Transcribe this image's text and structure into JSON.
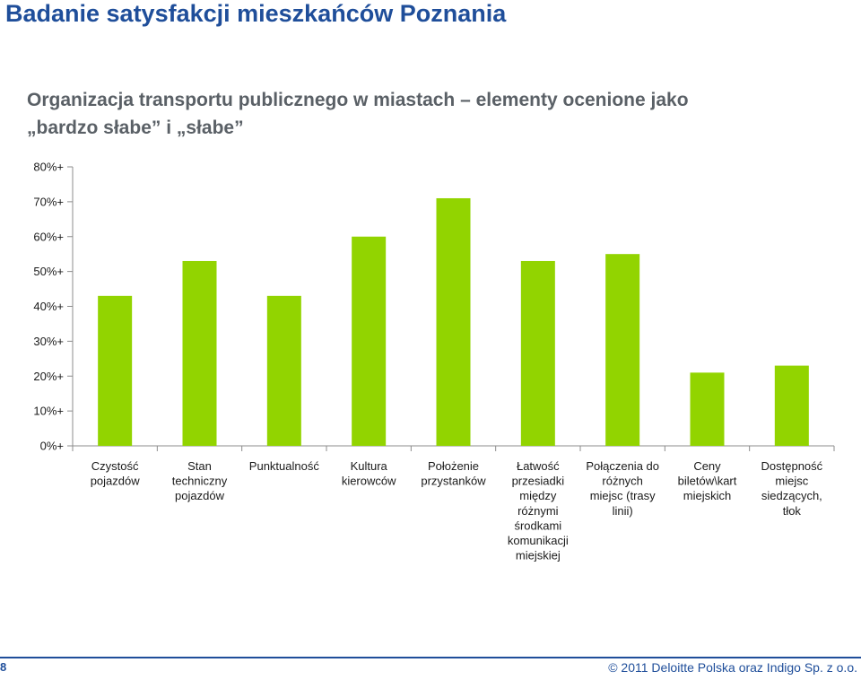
{
  "page": {
    "title": "Badanie satysfakcji mieszkańców Poznania",
    "page_number": "8",
    "copyright": "© 2011 Deloitte Polska oraz Indigo Sp. z o.o."
  },
  "colors": {
    "bar": "#92d400",
    "title": "#1f4e9a",
    "text": "#1a1a1a"
  },
  "chart_data": {
    "type": "bar",
    "title_lines": [
      "Organizacja transportu publicznego w miastach – elementy ocenione jako",
      "„bardzo słabe” i „słabe”"
    ],
    "categories": [
      [
        "Czystość",
        "pojazdów"
      ],
      [
        "Stan",
        "techniczny",
        "pojazdów"
      ],
      [
        "Punktualność"
      ],
      [
        "Kultura",
        "kierowców"
      ],
      [
        "Położenie",
        "przystanków"
      ],
      [
        "Łatwość",
        "przesiadki",
        "między",
        "różnymi",
        "środkami",
        "komunikacji",
        "miejskiej"
      ],
      [
        "Połączenia do",
        "różnych",
        "miejsc (trasy",
        "linii)"
      ],
      [
        "Ceny",
        "biletów\\kart",
        "miejskich"
      ],
      [
        "Dostępność",
        "miejsc",
        "siedzących,",
        "tłok"
      ]
    ],
    "values": [
      43,
      53,
      43,
      60,
      71,
      53,
      55,
      21,
      23
    ],
    "ylim": [
      0,
      80
    ],
    "yticks": [
      "0%+",
      "10%+",
      "20%+",
      "30%+",
      "40%+",
      "50%+",
      "60%+",
      "70%+",
      "80%+"
    ],
    "grid": false,
    "legend": "none"
  }
}
